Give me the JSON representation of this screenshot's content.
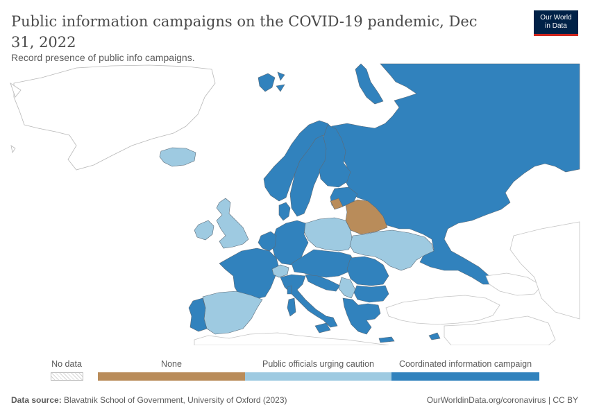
{
  "title": "Public information campaigns on the COVID-19 pandemic, Dec 31, 2022",
  "subtitle": "Record presence of public info campaigns.",
  "logo": {
    "line1": "Our World",
    "line2": "in Data"
  },
  "legend": {
    "no_data": "No data",
    "categories": [
      {
        "label": "None",
        "color": "#b98c5a"
      },
      {
        "label": "Public officials urging caution",
        "color": "#9ecae1"
      },
      {
        "label": "Coordinated information campaign",
        "color": "#3182bd"
      }
    ]
  },
  "colors": {
    "none": "#b98c5a",
    "caution": "#9ecae1",
    "coordinated": "#3182bd",
    "no_data_border": "#aaaaaa"
  },
  "footer": {
    "source_label": "Data source:",
    "source_text": "Blavatnik School of Government, University of Oxford (2023)",
    "right_text": "OurWorldinData.org/coronavirus | CC BY"
  }
}
